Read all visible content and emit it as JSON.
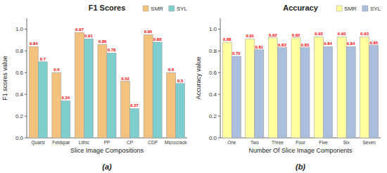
{
  "chart_data": [
    {
      "type": "bar",
      "title": "F1 Scores",
      "subtitle": "(a)",
      "xlabel": "Slice Image Compositions",
      "ylabel": "F1 scores value",
      "categories": [
        "Quartz",
        "Feldspar",
        "Lithic",
        "PP",
        "CP",
        "CDP",
        "Microcrack"
      ],
      "series": [
        {
          "name": "SMR",
          "color": "#F2C27E",
          "values": [
            0.84,
            0.6,
            0.97,
            0.86,
            0.52,
            0.95,
            0.6
          ]
        },
        {
          "name": "SYL",
          "color": "#7ECECE",
          "values": [
            0.7,
            0.34,
            0.91,
            0.78,
            0.27,
            0.88,
            0.5
          ]
        }
      ],
      "ylim": [
        0.0,
        1.1
      ],
      "yticks": [
        {
          "value": 0,
          "label": "0.0"
        },
        0.2,
        0.4,
        0.6,
        0.8,
        {
          "value": 1,
          "label": "1.0"
        }
      ],
      "legend": "upper right",
      "data_labels": true
    },
    {
      "type": "bar",
      "title": "Accuracy",
      "subtitle": "(b)",
      "xlabel": "Number Of Slice Image Components",
      "ylabel": "Accuracy value",
      "categories": [
        "One",
        "Two",
        "Three",
        "Four",
        "Five",
        "Six",
        "Seven"
      ],
      "series": [
        {
          "name": "SMR",
          "color": "#FFFFA0",
          "values": [
            0.88,
            0.91,
            0.92,
            0.92,
            0.93,
            0.93,
            0.93
          ]
        },
        {
          "name": "SYL",
          "color": "#AABEDD",
          "values": [
            0.75,
            0.81,
            0.83,
            0.83,
            0.84,
            0.84,
            0.85
          ]
        }
      ],
      "ylim": [
        0.0,
        1.1
      ],
      "yticks": [
        {
          "value": 0,
          "label": "0.0"
        },
        0.2,
        0.4,
        0.6,
        0.8,
        {
          "value": 1,
          "label": "1.0"
        }
      ],
      "legend": "upper right",
      "data_labels": true
    }
  ]
}
